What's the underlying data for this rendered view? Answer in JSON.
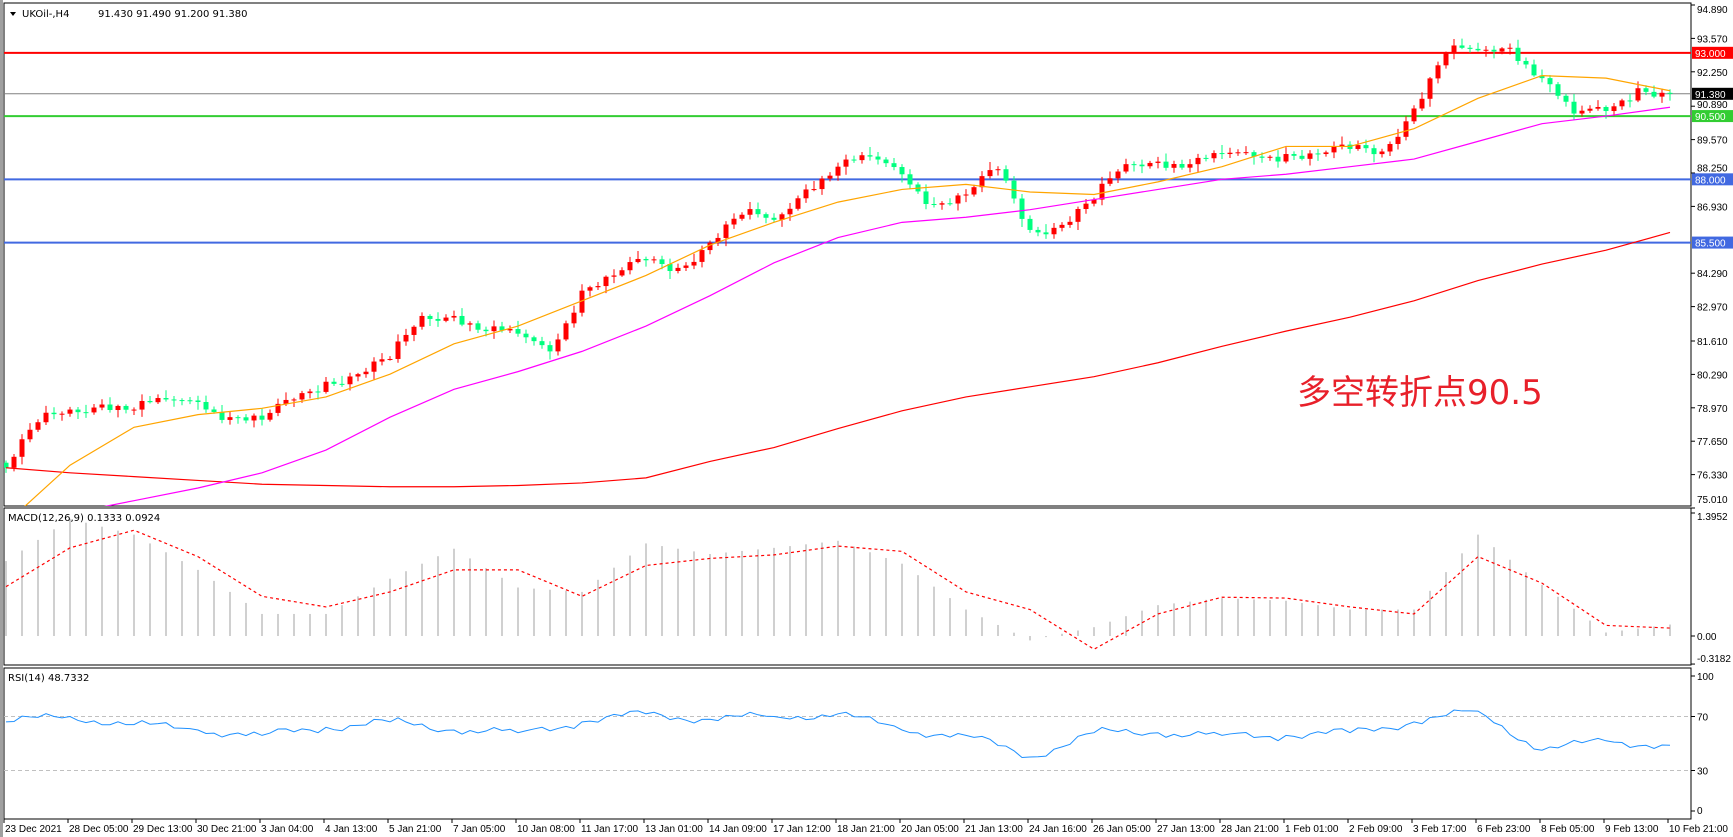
{
  "header": {
    "symbol": "UKOil-,H4",
    "ohlc": "91.430 91.490 91.200 91.380"
  },
  "annotation": "多空转折点90.5",
  "colors": {
    "bull": "#ff0000",
    "bear": "#00ff7f",
    "ma_fast": "#ffa500",
    "ma_mid": "#ff00ff",
    "ma_slow": "#ff0000",
    "macd_hist": "#c0c0c0",
    "macd_signal": "#ff0000",
    "rsi": "#1e90ff"
  },
  "chart_data": [
    {
      "type": "candlestick",
      "ylim": [
        75.01,
        94.89
      ],
      "y_ticks": [
        "94.890",
        "93.570",
        "92.250",
        "90.890",
        "89.570",
        "88.250",
        "86.930",
        "84.290",
        "82.970",
        "81.610",
        "80.290",
        "78.970",
        "77.650",
        "76.330",
        "75.010"
      ],
      "x_ticks": [
        "23 Dec 2021",
        "28 Dec 05:00",
        "29 Dec 13:00",
        "30 Dec 21:00",
        "3 Jan 04:00",
        "4 Jan 13:00",
        "5 Jan 21:00",
        "7 Jan 05:00",
        "10 Jan 08:00",
        "11 Jan 17:00",
        "13 Jan 01:00",
        "14 Jan 09:00",
        "17 Jan 12:00",
        "18 Jan 21:00",
        "20 Jan 05:00",
        "21 Jan 13:00",
        "24 Jan 16:00",
        "26 Jan 05:00",
        "27 Jan 13:00",
        "28 Jan 21:00",
        "1 Feb 01:00",
        "2 Feb 09:00",
        "3 Feb 17:00",
        "6 Feb 23:00",
        "8 Feb 05:00",
        "9 Feb 13:00",
        "10 Feb 21:00"
      ],
      "close_every_4_bars": [
        76.6,
        78.4,
        78.9,
        79.1,
        78.9,
        79.3,
        79.2,
        78.6,
        78.5,
        79.3,
        80.0,
        80.3,
        80.9,
        82.6,
        82.6,
        82.0,
        81.9,
        81.2,
        83.6,
        84.2,
        84.8,
        84.5,
        85.5,
        86.6,
        86.4,
        87.6,
        88.5,
        88.9,
        88.2,
        87.0,
        87.4,
        88.4,
        86.0,
        86.2,
        87.2,
        88.6,
        88.7,
        88.6,
        89.0,
        88.9,
        89.0,
        89.0,
        89.2,
        89.1,
        90.8,
        93.0,
        93.1,
        93.2,
        92.0,
        90.6,
        90.7,
        91.6,
        91.38
      ],
      "moving_averages_at_ticks": {
        "fast": [
          74.4,
          76.7,
          78.2,
          78.7,
          78.95,
          79.4,
          80.3,
          81.5,
          82.2,
          83.2,
          84.2,
          85.4,
          86.3,
          87.1,
          87.6,
          87.8,
          87.5,
          87.4,
          87.9,
          88.5,
          89.3,
          89.3,
          90.0,
          91.2,
          92.1,
          92.0,
          91.5
        ],
        "mid": [
          74.3,
          74.8,
          75.3,
          75.8,
          76.4,
          77.3,
          78.6,
          79.7,
          80.4,
          81.2,
          82.2,
          83.4,
          84.7,
          85.7,
          86.3,
          86.5,
          86.8,
          87.2,
          87.6,
          88.0,
          88.2,
          88.5,
          88.8,
          89.5,
          90.2,
          90.5,
          90.85
        ],
        "slow": [
          76.6,
          76.4,
          76.25,
          76.1,
          75.95,
          75.9,
          75.85,
          75.85,
          75.9,
          76.0,
          76.2,
          76.85,
          77.4,
          78.15,
          78.85,
          79.4,
          79.8,
          80.2,
          80.75,
          81.4,
          82.0,
          82.55,
          83.2,
          84.0,
          84.65,
          85.2,
          85.9
        ]
      },
      "horizontal_lines": [
        {
          "price": 93.0,
          "label": "93.000",
          "color": "#ff0000"
        },
        {
          "price": 91.38,
          "label": "91.380",
          "color": "#808080",
          "tag_color": "#000000"
        },
        {
          "price": 90.5,
          "label": "90.500",
          "color": "#32cd32"
        },
        {
          "price": 88.0,
          "label": "88.000",
          "color": "#4169e1"
        },
        {
          "price": 85.5,
          "label": "85.500",
          "color": "#4169e1"
        }
      ]
    },
    {
      "type": "bar+line",
      "title": "MACD(12,26,9) 0.1333 0.0924",
      "ylim": [
        -0.3182,
        1.3952
      ],
      "y_ticks": [
        "1.3952",
        "0.00",
        "-0.3182"
      ],
      "histogram_at_ticks": [
        0.85,
        1.33,
        1.15,
        0.75,
        0.25,
        0.25,
        0.65,
        0.99,
        0.55,
        0.5,
        1.05,
        0.93,
        1.0,
        1.08,
        0.82,
        0.3,
        -0.05,
        0.1,
        0.35,
        0.43,
        0.4,
        0.3,
        0.3,
        1.15,
        0.58,
        0.04,
        0.13
      ],
      "signal_at_ticks": [
        0.56,
        1.0,
        1.2,
        0.9,
        0.45,
        0.33,
        0.5,
        0.75,
        0.75,
        0.45,
        0.8,
        0.88,
        0.92,
        1.02,
        0.96,
        0.5,
        0.3,
        -0.15,
        0.25,
        0.44,
        0.43,
        0.33,
        0.25,
        0.9,
        0.6,
        0.12,
        0.09
      ]
    },
    {
      "type": "line",
      "title": "RSI(14) 48.7332",
      "ylim": [
        0,
        100
      ],
      "y_ticks": [
        "100",
        "70",
        "30",
        "0"
      ],
      "levels": [
        70,
        30
      ],
      "values_at_ticks": [
        66,
        70,
        64,
        60,
        56,
        62,
        66,
        60,
        58,
        66,
        72,
        68,
        70,
        72,
        60,
        56,
        40,
        58,
        58,
        56,
        56,
        58,
        66,
        74,
        45,
        52,
        48.7
      ]
    }
  ]
}
